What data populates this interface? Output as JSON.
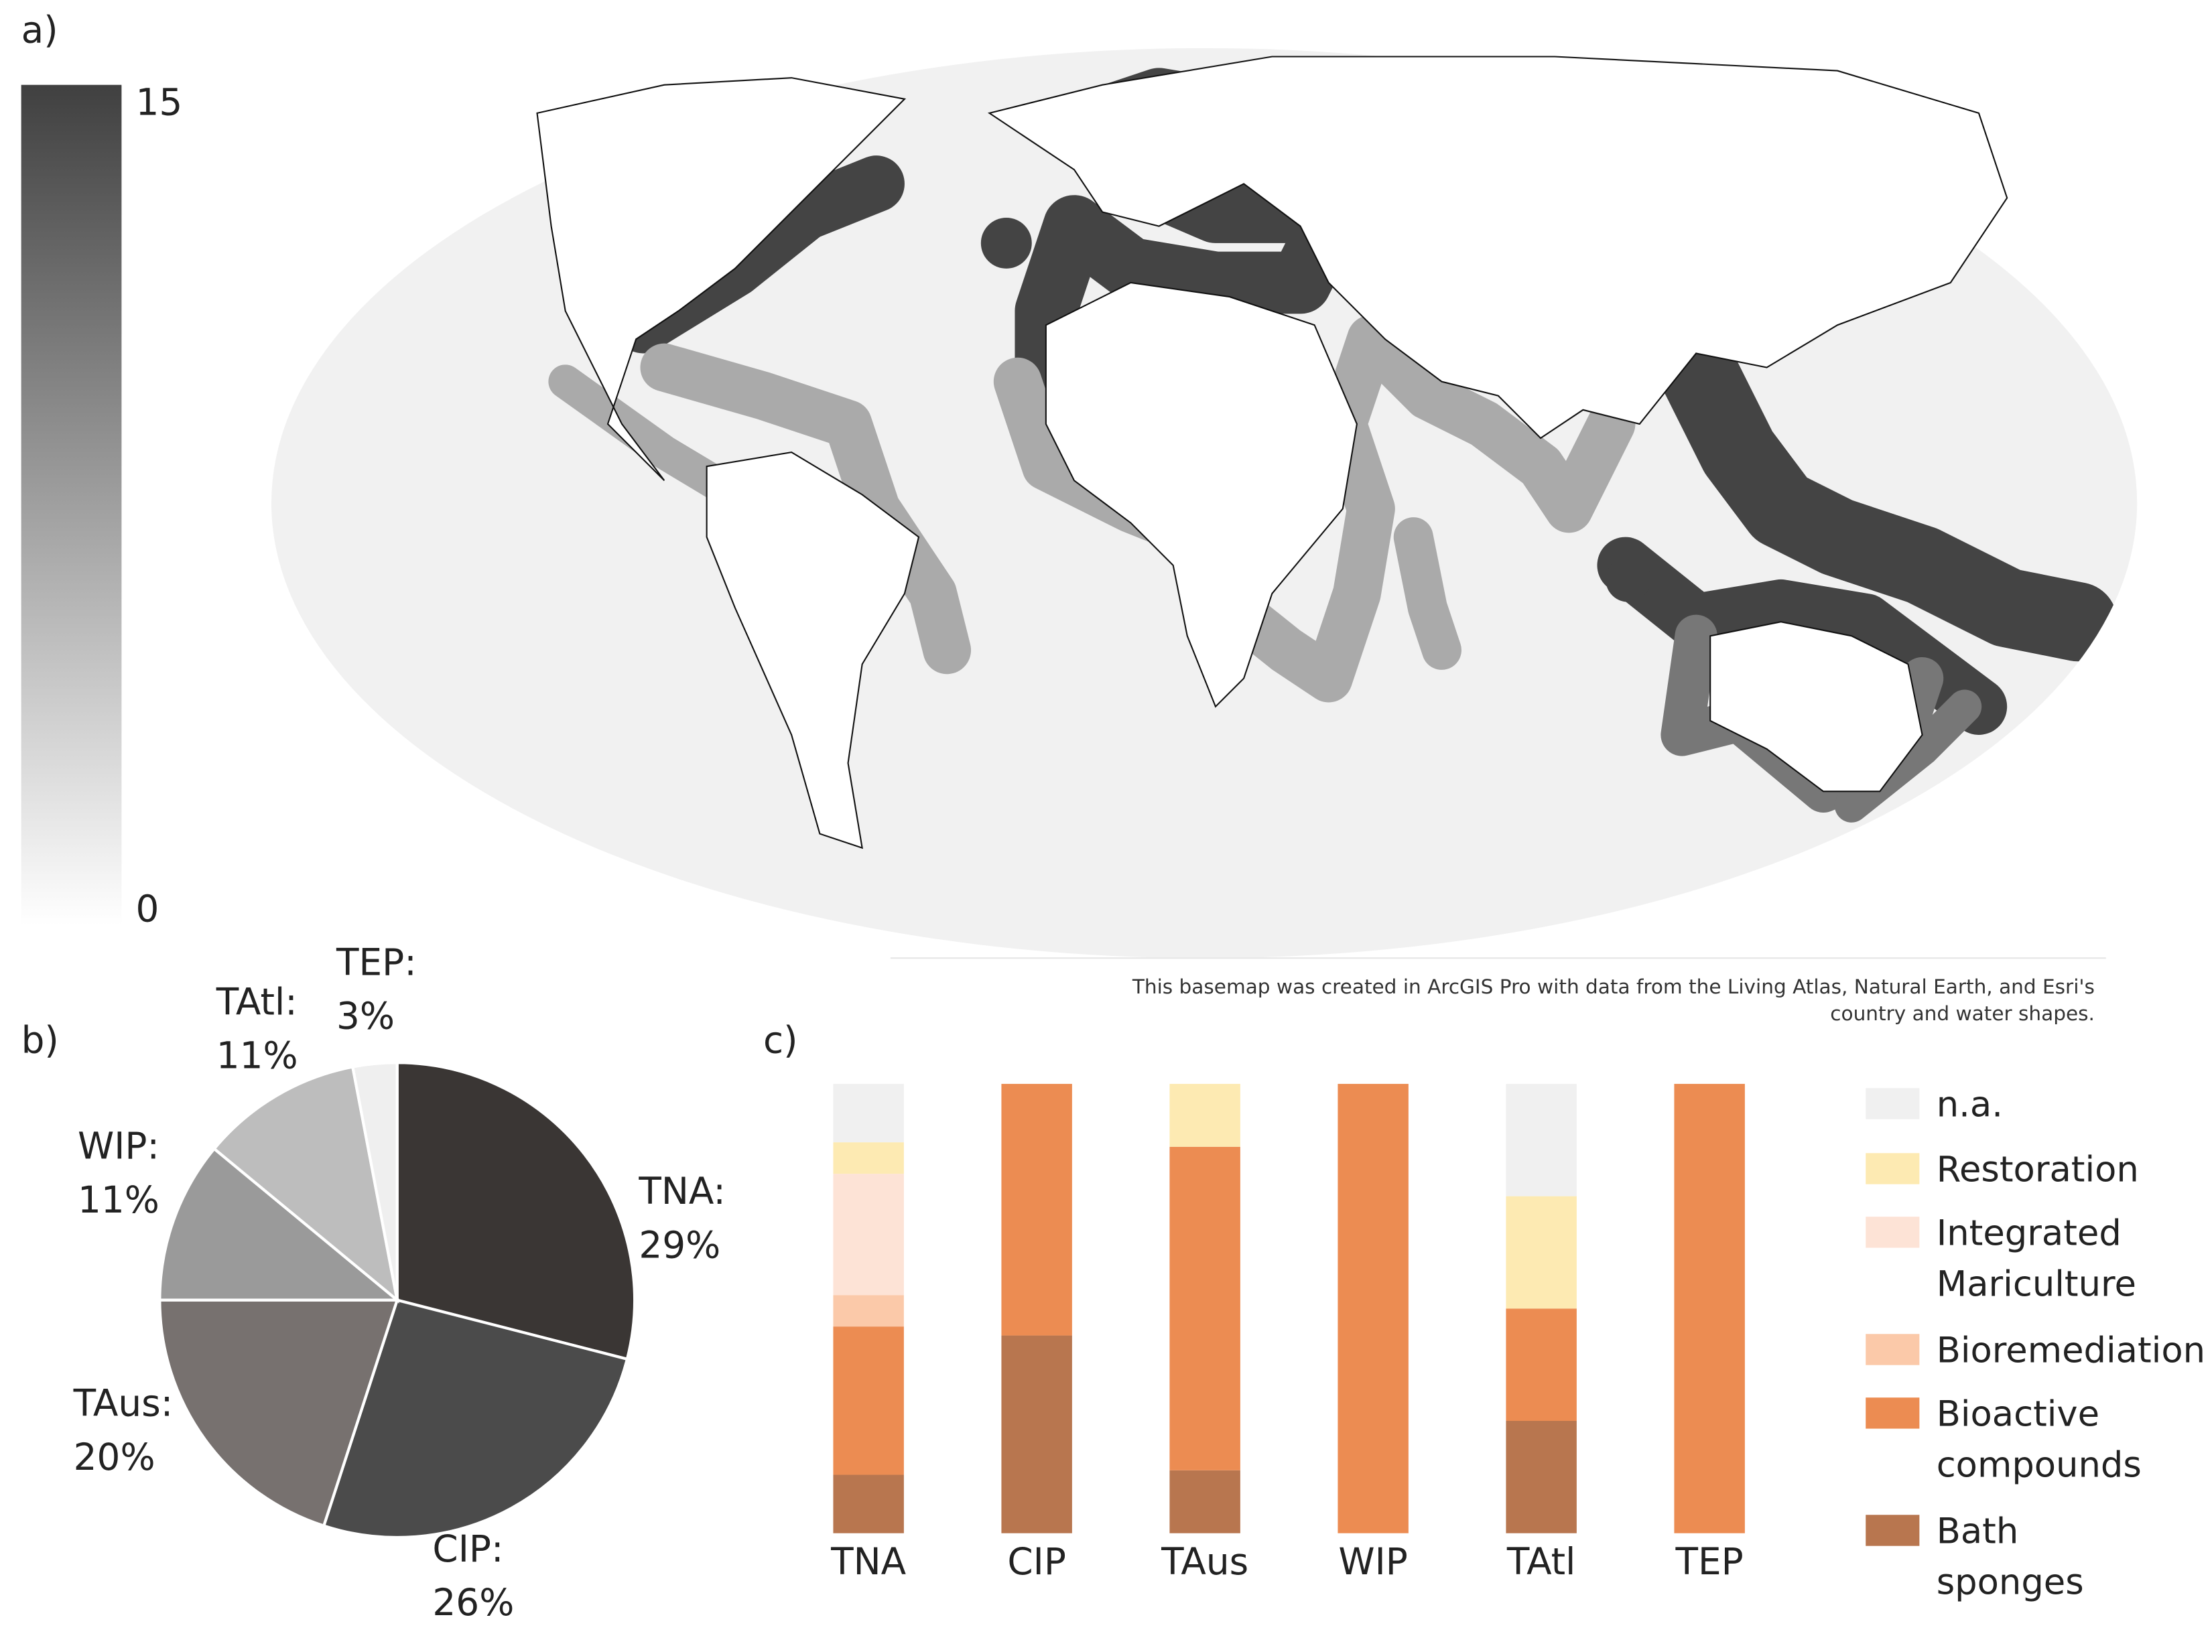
{
  "chart_data": [
    {
      "type": "map",
      "panel_label": "a)",
      "colorbar": {
        "lim": [
          0,
          15
        ],
        "ticks": [
          0,
          15
        ]
      },
      "attribution": "This basemap was created in ArcGIS Pro with data from the Living Atlas, Natural Earth, and Esri's country and water shapes."
    },
    {
      "type": "pie",
      "panel_label": "b)",
      "categories": [
        "TNA:",
        "CIP:",
        "TAus:",
        "WIP:",
        "TAtl:",
        "TEP:"
      ],
      "values": [
        29,
        26,
        20,
        11,
        11,
        3
      ],
      "value_labels": [
        "29%",
        "26%",
        "20%",
        "11%",
        "11%",
        "3%"
      ],
      "colors": [
        "#3a3634",
        "#4b4b4b",
        "#77716f",
        "#9a9a9a",
        "#bdbdbd",
        "#efefef"
      ]
    },
    {
      "type": "stacked_bar",
      "panel_label": "c)",
      "categories": [
        "TNA",
        "CIP",
        "TAus",
        "WIP",
        "TAtl",
        "TEP"
      ],
      "series": [
        {
          "name": "Bath sponges",
          "color": "#b8764f",
          "values": [
            13,
            44,
            14,
            0,
            25,
            0
          ]
        },
        {
          "name": "Bioactive compounds",
          "color": "#ec8c52",
          "values": [
            33,
            56,
            72,
            100,
            25,
            100
          ]
        },
        {
          "name": "Bioremediation",
          "color": "#fbc9a9",
          "values": [
            7,
            0,
            0,
            0,
            0,
            0
          ]
        },
        {
          "name": "Integrated Mariculture",
          "color": "#fde3d6",
          "values": [
            27,
            0,
            0,
            0,
            0,
            0
          ]
        },
        {
          "name": "Restoration",
          "color": "#fdeab2",
          "values": [
            7,
            0,
            14,
            0,
            25,
            0
          ]
        },
        {
          "name": "n.a.",
          "color": "#f0f0f0",
          "values": [
            13,
            0,
            0,
            0,
            25,
            0
          ]
        }
      ]
    }
  ]
}
